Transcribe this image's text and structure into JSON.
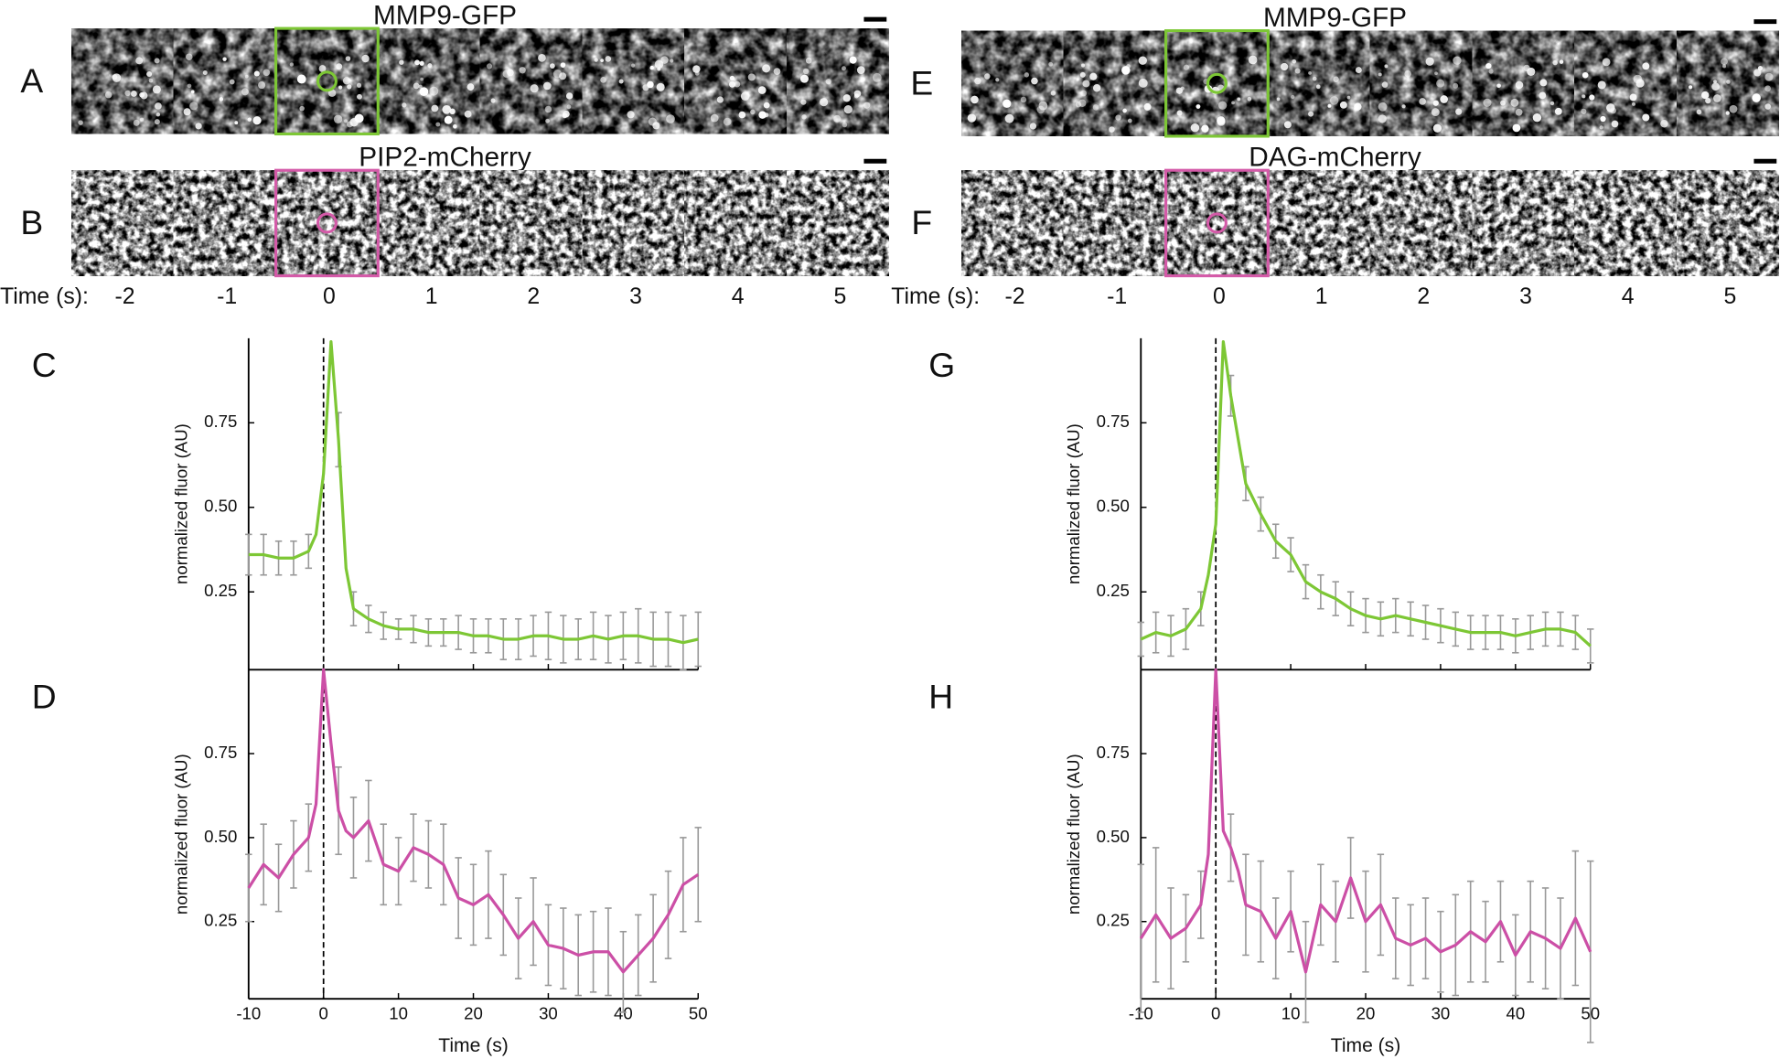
{
  "panels": [
    {
      "letter": "A",
      "title": "MMP9-GFP"
    },
    {
      "letter": "B",
      "title": "PIP2-mCherry"
    },
    {
      "letter": "E",
      "title": "MMP9-GFP"
    },
    {
      "letter": "F",
      "title": "DAG-mCherry"
    }
  ],
  "time_label": "Time (s):",
  "times": [
    -2,
    -1,
    0,
    1,
    2,
    3,
    4,
    5
  ],
  "chart_data": [
    {
      "type": "line",
      "letter": "C",
      "ylabel": "normalized fluor (AU)",
      "vline": 0,
      "xtick_labels": false,
      "x": [
        -10,
        -8,
        -6,
        -4,
        -2,
        -1,
        0,
        1,
        2,
        3,
        4,
        6,
        8,
        10,
        12,
        14,
        16,
        18,
        20,
        22,
        24,
        26,
        28,
        30,
        32,
        34,
        36,
        38,
        40,
        42,
        44,
        46,
        48,
        50
      ],
      "series": [
        {
          "color": "#7dc735",
          "values": [
            0.36,
            0.36,
            0.35,
            0.35,
            0.37,
            0.42,
            0.6,
            0.99,
            0.7,
            0.32,
            0.2,
            0.17,
            0.15,
            0.14,
            0.14,
            0.13,
            0.13,
            0.13,
            0.12,
            0.12,
            0.11,
            0.11,
            0.12,
            0.12,
            0.11,
            0.11,
            0.12,
            0.11,
            0.12,
            0.12,
            0.11,
            0.11,
            0.1,
            0.11
          ],
          "errors": [
            0.06,
            0.06,
            0.05,
            0.05,
            0.05,
            null,
            null,
            null,
            0.08,
            null,
            0.05,
            0.04,
            0.04,
            0.03,
            0.04,
            0.04,
            0.04,
            0.05,
            0.05,
            0.05,
            0.06,
            0.06,
            0.06,
            0.07,
            0.07,
            0.06,
            0.07,
            0.07,
            0.07,
            0.08,
            0.08,
            0.08,
            0.08,
            0.08
          ]
        }
      ],
      "xlim": [
        -10,
        50
      ],
      "ylim": [
        0.02,
        1.0
      ],
      "xticks": [
        -10,
        0,
        10,
        20,
        30,
        40,
        50
      ],
      "yticks": [
        0.25,
        {
          "value": 0.5,
          "label": "0.50"
        },
        0.75
      ]
    },
    {
      "type": "line",
      "letter": "D",
      "ylabel": "normalized fluor (AU)",
      "xlabel": "Time (s)",
      "vline": 0,
      "xtick_labels": true,
      "x": [
        -10,
        -8,
        -6,
        -4,
        -2,
        -1,
        0,
        1,
        2,
        3,
        4,
        6,
        8,
        10,
        12,
        14,
        16,
        18,
        20,
        22,
        24,
        26,
        28,
        30,
        32,
        34,
        36,
        38,
        40,
        42,
        44,
        46,
        48,
        50
      ],
      "series": [
        {
          "color": "#cc4fa6",
          "values": [
            0.35,
            0.42,
            0.38,
            0.45,
            0.5,
            0.6,
            1.0,
            0.78,
            0.58,
            0.52,
            0.5,
            0.55,
            0.42,
            0.4,
            0.47,
            0.45,
            0.42,
            0.32,
            0.3,
            0.33,
            0.27,
            0.2,
            0.25,
            0.18,
            0.17,
            0.15,
            0.16,
            0.16,
            0.1,
            0.15,
            0.2,
            0.27,
            0.36,
            0.39
          ],
          "errors": [
            0.1,
            0.12,
            0.1,
            0.1,
            0.1,
            null,
            null,
            null,
            0.13,
            null,
            0.12,
            0.12,
            0.12,
            0.1,
            0.1,
            0.1,
            0.12,
            0.12,
            0.12,
            0.13,
            0.12,
            0.12,
            0.13,
            0.12,
            0.12,
            0.12,
            0.12,
            0.13,
            0.12,
            0.12,
            0.13,
            0.13,
            0.14,
            0.14
          ]
        }
      ],
      "xlim": [
        -10,
        50
      ],
      "ylim": [
        0.02,
        1.0
      ],
      "xticks": [
        -10,
        0,
        10,
        20,
        30,
        40,
        50
      ],
      "yticks": [
        0.25,
        {
          "value": 0.5,
          "label": "0.50"
        },
        0.75
      ]
    },
    {
      "type": "line",
      "letter": "G",
      "ylabel": "normalized fluor (AU)",
      "vline": 0,
      "xtick_labels": false,
      "x": [
        -10,
        -8,
        -6,
        -4,
        -2,
        -1,
        0,
        1,
        2,
        3,
        4,
        6,
        8,
        10,
        12,
        14,
        16,
        18,
        20,
        22,
        24,
        26,
        28,
        30,
        32,
        34,
        36,
        38,
        40,
        42,
        44,
        46,
        48,
        50
      ],
      "series": [
        {
          "color": "#7dc735",
          "values": [
            0.11,
            0.13,
            0.12,
            0.14,
            0.2,
            0.3,
            0.45,
            0.99,
            0.83,
            0.7,
            0.57,
            0.48,
            0.4,
            0.36,
            0.28,
            0.25,
            0.23,
            0.2,
            0.18,
            0.17,
            0.18,
            0.17,
            0.16,
            0.15,
            0.14,
            0.13,
            0.13,
            0.13,
            0.12,
            0.13,
            0.14,
            0.14,
            0.13,
            0.09
          ],
          "errors": [
            0.05,
            0.06,
            0.06,
            0.06,
            0.05,
            null,
            null,
            null,
            0.06,
            null,
            0.05,
            0.05,
            0.05,
            0.05,
            0.05,
            0.05,
            0.05,
            0.05,
            0.05,
            0.05,
            0.05,
            0.05,
            0.05,
            0.05,
            0.05,
            0.05,
            0.05,
            0.05,
            0.05,
            0.05,
            0.05,
            0.05,
            0.05,
            0.05
          ]
        }
      ],
      "xlim": [
        -10,
        50
      ],
      "ylim": [
        0.02,
        1.0
      ],
      "xticks": [
        -10,
        0,
        10,
        20,
        30,
        40,
        50
      ],
      "yticks": [
        0.25,
        {
          "value": 0.5,
          "label": "0.50"
        },
        0.75
      ]
    },
    {
      "type": "line",
      "letter": "H",
      "ylabel": "normalized fluor (AU)",
      "xlabel": "Time (s)",
      "vline": 0,
      "xtick_labels": true,
      "x": [
        -10,
        -8,
        -6,
        -4,
        -2,
        -1,
        0,
        1,
        2,
        3,
        4,
        6,
        8,
        10,
        12,
        14,
        16,
        18,
        20,
        22,
        24,
        26,
        28,
        30,
        32,
        34,
        36,
        38,
        40,
        42,
        44,
        46,
        48,
        50
      ],
      "series": [
        {
          "color": "#cc4fa6",
          "values": [
            0.2,
            0.27,
            0.2,
            0.23,
            0.3,
            0.45,
            1.0,
            0.52,
            0.47,
            0.4,
            0.3,
            0.28,
            0.2,
            0.28,
            0.1,
            0.3,
            0.25,
            0.38,
            0.25,
            0.3,
            0.2,
            0.18,
            0.2,
            0.16,
            0.18,
            0.22,
            0.19,
            0.25,
            0.15,
            0.22,
            0.2,
            0.17,
            0.26,
            0.16
          ],
          "errors": [
            0.22,
            0.2,
            0.15,
            0.1,
            0.1,
            null,
            null,
            null,
            0.1,
            null,
            0.15,
            0.15,
            0.12,
            0.12,
            0.15,
            0.12,
            0.12,
            0.12,
            0.15,
            0.15,
            0.12,
            0.12,
            0.12,
            0.12,
            0.15,
            0.15,
            0.12,
            0.12,
            0.12,
            0.15,
            0.15,
            0.15,
            0.2,
            0.27
          ]
        }
      ],
      "xlim": [
        -10,
        50
      ],
      "ylim": [
        0.02,
        1.0
      ],
      "xticks": [
        -10,
        0,
        10,
        20,
        30,
        40,
        50
      ],
      "yticks": [
        0.25,
        {
          "value": 0.5,
          "label": "0.50"
        },
        0.75
      ]
    }
  ]
}
